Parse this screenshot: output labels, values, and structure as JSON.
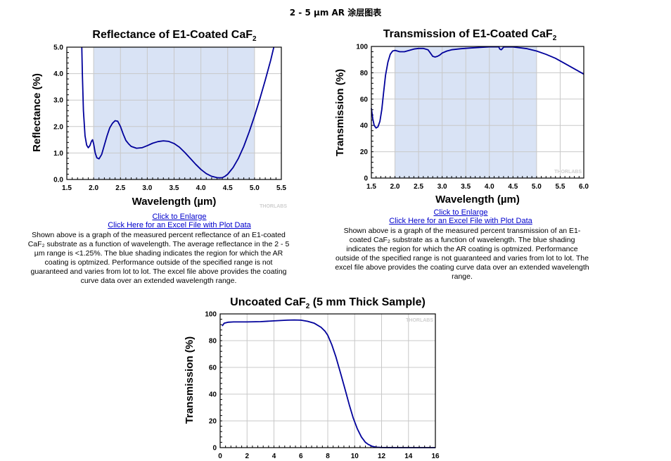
{
  "page": {
    "title": "2 - 5 µm AR 涂层图表"
  },
  "left_panel": {
    "link_enlarge": "Click to Enlarge",
    "link_excel": "Click Here for an Excel File with Plot Data",
    "description": "Shown above is a graph of the measured percent reflectance of an E1-coated CaF₂ substrate as a function of wavelength. The average reflectance in the 2 - 5 µm range is <1.25%. The blue shading indicates the region for which the AR coating is optmized. Performance outside of the specified range is not guaranteed and varies from lot to lot. The excel file above provides the coating curve data over an extended wavelength range."
  },
  "right_panel": {
    "link_enlarge": "Click to Enlarge",
    "link_excel": "Click Here for an Excel File with Plot Data",
    "description": "Shown above is a graph of the measured percent transmission of an E1-coated CaF₂ substrate as a function of wavelength. The blue shading indicates the region for which the AR coating is optmized. Performance outside of the specified range is not guaranteed and varies from lot to lot. The excel file above provides the coating curve data over an extended wavelength range."
  },
  "colors": {
    "curve": "#00009b",
    "shade": "#d9e3f5",
    "grid": "#c8c8c8"
  },
  "chart_data": [
    {
      "type": "line",
      "title": "Reflectance of E1-Coated CaF₂",
      "xlabel": "Wavelength (µm)",
      "ylabel": "Reflectance (%)",
      "watermark": "THORLABS",
      "xlim": [
        1.5,
        5.5
      ],
      "ylim": [
        0,
        5
      ],
      "xticks": [
        1.5,
        2.0,
        2.5,
        3.0,
        3.5,
        4.0,
        4.5,
        5.0,
        5.5
      ],
      "yticks": [
        0.0,
        1.0,
        2.0,
        3.0,
        4.0,
        5.0
      ],
      "xtick_labels": [
        "1.5",
        "2.0",
        "2.5",
        "3.0",
        "3.5",
        "4.0",
        "4.5",
        "5.0",
        "5.5"
      ],
      "ytick_labels": [
        "0.0",
        "1.0",
        "2.0",
        "3.0",
        "4.0",
        "5.0"
      ],
      "shaded_range": [
        2.0,
        5.0
      ],
      "grid": true,
      "series": [
        {
          "x": [
            1.78,
            1.79,
            1.81,
            1.84,
            1.87,
            1.9,
            1.93,
            1.96,
            1.98,
            2.0,
            2.03,
            2.06,
            2.1,
            2.15,
            2.2,
            2.25,
            2.3,
            2.35,
            2.4,
            2.45,
            2.5,
            2.55,
            2.6,
            2.65,
            2.7,
            2.8,
            2.9,
            3.0,
            3.1,
            3.2,
            3.3,
            3.4,
            3.5,
            3.6,
            3.7,
            3.8,
            3.9,
            4.0,
            4.1,
            4.2,
            4.3,
            4.35,
            4.4,
            4.45,
            4.5,
            4.6,
            4.7,
            4.8,
            4.9,
            5.0,
            5.1,
            5.2,
            5.3,
            5.36
          ],
          "y": [
            5.0,
            4.0,
            2.6,
            1.65,
            1.3,
            1.2,
            1.28,
            1.45,
            1.5,
            1.35,
            1.0,
            0.82,
            0.78,
            0.95,
            1.3,
            1.65,
            1.95,
            2.12,
            2.22,
            2.2,
            2.0,
            1.72,
            1.48,
            1.35,
            1.25,
            1.18,
            1.2,
            1.28,
            1.37,
            1.43,
            1.46,
            1.44,
            1.36,
            1.22,
            1.02,
            0.8,
            0.58,
            0.38,
            0.22,
            0.12,
            0.07,
            0.06,
            0.07,
            0.12,
            0.2,
            0.45,
            0.8,
            1.25,
            1.8,
            2.4,
            3.05,
            3.75,
            4.5,
            5.0
          ]
        }
      ]
    },
    {
      "type": "line",
      "title": "Transmission of E1-Coated CaF₂",
      "xlabel": "Wavelength (µm)",
      "ylabel": "Transmission (%)",
      "watermark": "THORLABS",
      "xlim": [
        1.5,
        6.0
      ],
      "ylim": [
        0,
        100
      ],
      "xticks": [
        1.5,
        2.0,
        2.5,
        3.0,
        3.5,
        4.0,
        4.5,
        5.0,
        5.5,
        6.0
      ],
      "yticks": [
        0,
        20,
        40,
        60,
        80,
        100
      ],
      "xtick_labels": [
        "1.5",
        "2.0",
        "2.5",
        "3.0",
        "3.5",
        "4.0",
        "4.5",
        "5.0",
        "5.5",
        "6.0"
      ],
      "ytick_labels": [
        "0",
        "20",
        "40",
        "60",
        "80",
        "100"
      ],
      "shaded_range": [
        2.0,
        5.0
      ],
      "grid": true,
      "series": [
        {
          "x": [
            1.5,
            1.53,
            1.56,
            1.6,
            1.64,
            1.68,
            1.72,
            1.76,
            1.8,
            1.85,
            1.9,
            1.95,
            2.0,
            2.05,
            2.1,
            2.2,
            2.3,
            2.4,
            2.5,
            2.6,
            2.7,
            2.75,
            2.8,
            2.85,
            2.9,
            2.95,
            3.0,
            3.1,
            3.2,
            3.4,
            3.6,
            3.8,
            4.0,
            4.2,
            4.22,
            4.25,
            4.28,
            4.3,
            4.35,
            4.4,
            4.5,
            4.6,
            4.8,
            5.0,
            5.2,
            5.4,
            5.6,
            5.8,
            6.0
          ],
          "y": [
            53,
            45,
            40,
            38,
            39,
            43,
            52,
            65,
            78,
            88,
            94,
            96.5,
            97,
            96.5,
            96,
            96,
            97,
            98,
            98.5,
            98.5,
            97.5,
            95,
            92.5,
            92,
            92.5,
            93.5,
            95,
            96.5,
            97.5,
            98.3,
            98.8,
            99.3,
            99.7,
            99.7,
            98,
            97.5,
            98.5,
            99.5,
            99.6,
            99.7,
            99.6,
            99.2,
            98.3,
            96.5,
            94,
            91,
            87,
            83,
            79
          ]
        }
      ]
    },
    {
      "type": "line",
      "title": "Uncoated CaF₂ (5 mm Thick Sample)",
      "xlabel": "",
      "ylabel": "Transmission (%)",
      "watermark": "THORLABS",
      "xlim": [
        0,
        16
      ],
      "ylim": [
        0,
        100
      ],
      "xticks": [
        0,
        2,
        4,
        6,
        8,
        10,
        12,
        14,
        16
      ],
      "yticks": [
        0,
        20,
        40,
        60,
        80,
        100
      ],
      "xtick_labels": [
        "0",
        "2",
        "4",
        "6",
        "8",
        "10",
        "12",
        "14",
        "16"
      ],
      "ytick_labels": [
        "0",
        "20",
        "40",
        "60",
        "80",
        "100"
      ],
      "grid": true,
      "series": [
        {
          "x": [
            0.15,
            0.3,
            0.6,
            1,
            2,
            3,
            4,
            5,
            5.5,
            6,
            6.5,
            7,
            7.5,
            7.8,
            8,
            8.3,
            8.6,
            9,
            9.3,
            9.6,
            9.9,
            10.2,
            10.5,
            10.8,
            11,
            11.3,
            11.6,
            12,
            13,
            14,
            15,
            16
          ],
          "y": [
            91,
            93,
            93.8,
            94,
            94,
            94.2,
            94.8,
            95.3,
            95.5,
            95.3,
            94.5,
            93,
            90,
            87,
            84,
            77,
            68,
            54,
            43,
            32,
            22,
            14,
            8,
            4,
            2.5,
            1,
            0.3,
            0.1,
            0,
            0,
            0,
            0
          ]
        }
      ]
    }
  ]
}
